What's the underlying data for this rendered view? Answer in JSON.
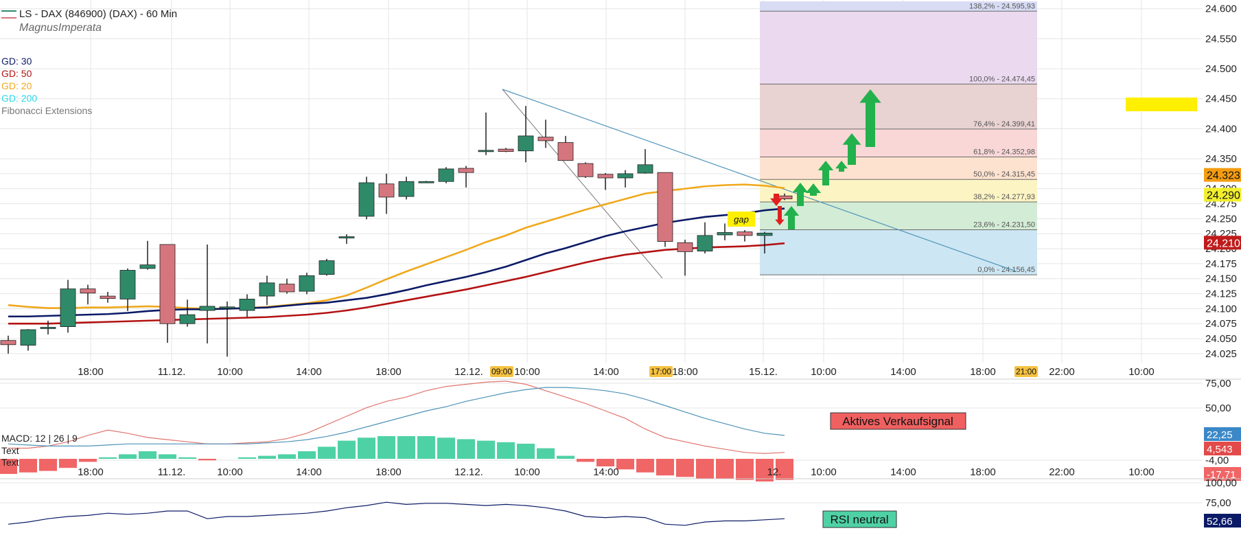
{
  "header": {
    "title": "LS - DAX (846900) (DAX) - 60 Min",
    "author": "MagnusImperata"
  },
  "indicators": [
    {
      "label": "GD: 30",
      "color": "#0b1a66"
    },
    {
      "label": "GD: 50",
      "color": "#b31212"
    },
    {
      "label": "GD: 20",
      "color": "#f0a81c"
    },
    {
      "label": "GD: 200",
      "color": "#28d8e8"
    },
    {
      "label": "Fibonacci Extensions",
      "color": "#777777"
    }
  ],
  "colors": {
    "up": "#2f8a6a",
    "down": "#d5767f",
    "grid": "#e5e5e5",
    "trendline": "#4e93b8",
    "macd_hist_pos": "#4fd1a6",
    "macd_hist_neg": "#f06565",
    "arrow_up": "#22b14c",
    "arrow_down": "#e02020"
  },
  "chart_data": [
    {
      "type": "candlestick",
      "title": "LS - DAX (846900) (DAX) - 60 Min",
      "ylim": [
        24010,
        24610
      ],
      "y_ticks": [
        "24.600",
        "24.550",
        "24.500",
        "24.450",
        "24.400",
        "24.350",
        "24.325",
        "24.300",
        "24.275",
        "24.250",
        "24.225",
        "24.200",
        "24.175",
        "24.150",
        "24.125",
        "24.100",
        "24.075",
        "24.050",
        "24.025"
      ],
      "x_ticks": [
        "18:00",
        "11.12.",
        "10:00",
        "14:00",
        "18:00",
        "12.12.",
        "10:00",
        "14:00",
        "18:00",
        "15.12.",
        "10:00",
        "14:00",
        "18:00",
        "22:00",
        "10:00"
      ],
      "time_badges": [
        "09:00",
        "17:00",
        "21:00"
      ],
      "candles": [
        {
          "o": 24047,
          "h": 24055,
          "l": 24025,
          "c": 24040
        },
        {
          "o": 24039,
          "h": 24066,
          "l": 24030,
          "c": 24065
        },
        {
          "o": 24067,
          "h": 24080,
          "l": 24057,
          "c": 24069
        },
        {
          "o": 24070,
          "h": 24148,
          "l": 24060,
          "c": 24133
        },
        {
          "o": 24133,
          "h": 24140,
          "l": 24107,
          "c": 24126
        },
        {
          "o": 24121,
          "h": 24128,
          "l": 24110,
          "c": 24117
        },
        {
          "o": 24116,
          "h": 24167,
          "l": 24096,
          "c": 24164
        },
        {
          "o": 24167,
          "h": 24213,
          "l": 24165,
          "c": 24173
        },
        {
          "o": 24207,
          "h": 24207,
          "l": 24043,
          "c": 24075
        },
        {
          "o": 24075,
          "h": 24115,
          "l": 24070,
          "c": 24090
        },
        {
          "o": 24097,
          "h": 24207,
          "l": 24042,
          "c": 24104
        },
        {
          "o": 24101,
          "h": 24112,
          "l": 24020,
          "c": 24103
        },
        {
          "o": 24097,
          "h": 24124,
          "l": 24086,
          "c": 24116
        },
        {
          "o": 24121,
          "h": 24155,
          "l": 24106,
          "c": 24143
        },
        {
          "o": 24141,
          "h": 24150,
          "l": 24125,
          "c": 24128
        },
        {
          "o": 24129,
          "h": 24160,
          "l": 24124,
          "c": 24155
        },
        {
          "o": 24157,
          "h": 24183,
          "l": 24155,
          "c": 24180
        },
        {
          "o": 24218,
          "h": 24224,
          "l": 24208,
          "c": 24220
        },
        {
          "o": 24254,
          "h": 24320,
          "l": 24249,
          "c": 24310
        },
        {
          "o": 24308,
          "h": 24325,
          "l": 24258,
          "c": 24286
        },
        {
          "o": 24287,
          "h": 24320,
          "l": 24282,
          "c": 24312
        },
        {
          "o": 24311,
          "h": 24313,
          "l": 24310,
          "c": 24312
        },
        {
          "o": 24312,
          "h": 24336,
          "l": 24309,
          "c": 24333
        },
        {
          "o": 24334,
          "h": 24338,
          "l": 24302,
          "c": 24327
        },
        {
          "o": 24363,
          "h": 24427,
          "l": 24356,
          "c": 24364
        },
        {
          "o": 24366,
          "h": 24368,
          "l": 24361,
          "c": 24362
        },
        {
          "o": 24363,
          "h": 24438,
          "l": 24344,
          "c": 24388
        },
        {
          "o": 24386,
          "h": 24415,
          "l": 24368,
          "c": 24380
        },
        {
          "o": 24377,
          "h": 24388,
          "l": 24349,
          "c": 24347
        },
        {
          "o": 24342,
          "h": 24344,
          "l": 24318,
          "c": 24320
        },
        {
          "o": 24324,
          "h": 24326,
          "l": 24298,
          "c": 24318
        },
        {
          "o": 24318,
          "h": 24331,
          "l": 24302,
          "c": 24325
        },
        {
          "o": 24326,
          "h": 24366,
          "l": 24325,
          "c": 24340
        },
        {
          "o": 24327,
          "h": 24327,
          "l": 24203,
          "c": 24212
        },
        {
          "o": 24210,
          "h": 24215,
          "l": 24155,
          "c": 24195
        },
        {
          "o": 24196,
          "h": 24244,
          "l": 24192,
          "c": 24222
        },
        {
          "o": 24223,
          "h": 24242,
          "l": 24214,
          "c": 24227
        },
        {
          "o": 24228,
          "h": 24231,
          "l": 24212,
          "c": 24222
        },
        {
          "o": 24222,
          "h": 24228,
          "l": 24192,
          "c": 24226
        },
        {
          "o": 24288,
          "h": 24292,
          "l": 24281,
          "c": 24283
        }
      ],
      "moving_averages": [
        {
          "name": "GD: 20",
          "color": "#f0a81c",
          "values": [
            24106,
            24103,
            24101,
            24101,
            24102,
            24102,
            24103,
            24104,
            24103,
            24101,
            24100,
            24100,
            24101,
            24103,
            24106,
            24109,
            24114,
            24122,
            24135,
            24149,
            24162,
            24174,
            24186,
            24198,
            24211,
            24222,
            24235,
            24245,
            24255,
            24265,
            24274,
            24283,
            24292,
            24296,
            24300,
            24304,
            24306,
            24307,
            24305,
            24301
          ]
        },
        {
          "name": "GD: 30",
          "color": "#0b1a66",
          "values": [
            24087,
            24087,
            24088,
            24089,
            24090,
            24091,
            24093,
            24096,
            24098,
            24099,
            24099,
            24100,
            24101,
            24102,
            24105,
            24108,
            24110,
            24114,
            24118,
            24124,
            24131,
            24139,
            24146,
            24153,
            24161,
            24170,
            24181,
            24192,
            24201,
            24211,
            24221,
            24229,
            24236,
            24243,
            24248,
            24253,
            24256,
            24259,
            24264,
            24267
          ]
        },
        {
          "name": "GD: 50",
          "color": "#b31212",
          "values": [
            24075,
            24075,
            24075,
            24076,
            24077,
            24078,
            24079,
            24080,
            24081,
            24082,
            24083,
            24084,
            24085,
            24086,
            24088,
            24090,
            24093,
            24097,
            24102,
            24108,
            24114,
            24120,
            24126,
            24132,
            24139,
            24146,
            24153,
            24161,
            24169,
            24177,
            24184,
            24190,
            24194,
            24198,
            24200,
            24202,
            24203,
            24204,
            24206,
            24209
          ]
        }
      ],
      "fibonacci": [
        {
          "label": "138,2% - 24.595,93",
          "value": 24595.93
        },
        {
          "label": "100,0% - 24.474,45",
          "value": 24474.45
        },
        {
          "label": "76,4% - 24.399,41",
          "value": 24399.41
        },
        {
          "label": "61,8% - 24.352,98",
          "value": 24352.98
        },
        {
          "label": "50,0% - 24.315,45",
          "value": 24315.45
        },
        {
          "label": "38,2% - 24.277,93",
          "value": 24277.93
        },
        {
          "label": "23,6% - 24.231,50",
          "value": 24231.5
        },
        {
          "label": "0,0% - 24.156,45",
          "value": 24156.45
        }
      ],
      "price_badges": [
        {
          "label": "24.323",
          "value": 24323,
          "color": "#f39c12",
          "text_color": "#111"
        },
        {
          "label": "24.290",
          "value": 24290,
          "color": "#f2ef2e",
          "text_color": "#111"
        },
        {
          "label": "24.210",
          "value": 24210,
          "color": "#c01b1b",
          "text_color": "#ffffff"
        }
      ],
      "annotations": [
        {
          "label": "gap"
        }
      ]
    },
    {
      "type": "macd",
      "label": "MACD: 12 | 26 | 9",
      "text_labels": [
        "Text",
        "Text"
      ],
      "signal_label": "Aktives Verkaufsignal",
      "y_ticks": [
        "75,00",
        "50,00",
        "-4,00"
      ],
      "x_ticks": [
        "18:00",
        "11.12.",
        "10:00",
        "14:00",
        "18:00",
        "12.12.",
        "10:00",
        "14:00",
        "12.",
        "10:00",
        "14:00",
        "18:00",
        "22:00",
        "10:00"
      ],
      "histogram": [
        -10,
        -9,
        -8,
        -6,
        -2,
        1,
        3,
        5,
        3,
        1,
        -1,
        0,
        1,
        2,
        3,
        5,
        8,
        12,
        14,
        15,
        15,
        15,
        14,
        13,
        12,
        11,
        10,
        7,
        2,
        -2,
        -5,
        -7,
        -9,
        -11,
        -12,
        -13,
        -13,
        -14,
        -15,
        -14
      ],
      "macd_line": [
        10,
        10,
        12,
        16,
        22,
        27,
        24,
        20,
        18,
        16,
        14,
        14,
        15,
        16,
        19,
        24,
        32,
        40,
        48,
        54,
        58,
        64,
        68,
        70,
        72,
        73,
        70,
        64,
        58,
        52,
        45,
        38,
        28,
        20,
        16,
        12,
        9,
        6,
        5,
        6
      ],
      "signal_line": [
        14,
        13,
        12,
        12,
        12,
        13,
        14,
        14,
        14,
        14,
        14,
        14,
        14,
        15,
        16,
        18,
        21,
        25,
        30,
        35,
        40,
        45,
        49,
        54,
        58,
        62,
        65,
        67,
        67,
        66,
        64,
        61,
        56,
        50,
        44,
        38,
        33,
        28,
        24,
        22
      ],
      "value_badges": [
        {
          "label": "22,25",
          "color": "#3b88c8",
          "text_color": "#ffffff"
        },
        {
          "label": "4,543",
          "color": "#e34a4a",
          "text_color": "#ffffff"
        },
        {
          "label": "-17,71",
          "color": "#f06565",
          "text_color": "#ffffff"
        }
      ]
    },
    {
      "type": "rsi",
      "label": "RSI neutral",
      "y_ticks": [
        "100,00",
        "75,00"
      ],
      "values": [
        48,
        50,
        53,
        55,
        56,
        58,
        57,
        58,
        60,
        60,
        53,
        55,
        55,
        56,
        57,
        58,
        60,
        63,
        65,
        68,
        66,
        67,
        67,
        66,
        65,
        66,
        65,
        63,
        60,
        55,
        54,
        55,
        54,
        48,
        47,
        50,
        51,
        51,
        52,
        53
      ],
      "value_badge": {
        "label": "52,66",
        "color": "#0b1a66",
        "text_color": "#ffffff"
      }
    }
  ]
}
